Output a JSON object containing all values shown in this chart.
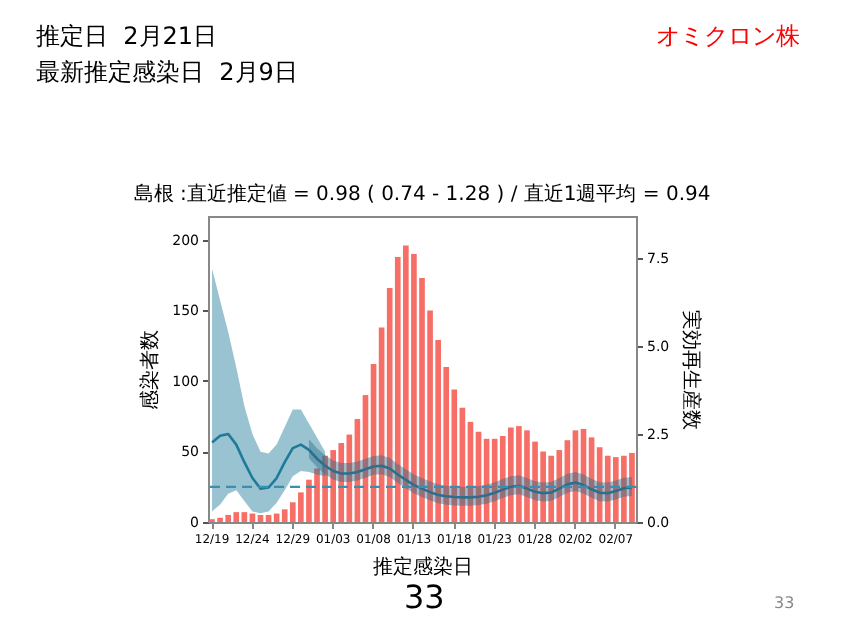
{
  "chart_data": {
    "type": "bar",
    "title": "島根 :直近推定値 = 0.98 ( 0.74 - 1.28 ) / 直近1週平均 = 0.94",
    "xlabel": "推定感染日",
    "ylabel": "感染者数",
    "y2label": "実効再生産数",
    "annotations": [
      "推定日  2月21日",
      "最新推定感染日  2月9日",
      "オミクロン株",
      "33",
      "33"
    ],
    "categories": [
      "12/19",
      null,
      null,
      null,
      null,
      "12/24",
      null,
      null,
      null,
      null,
      "12/29",
      null,
      null,
      null,
      null,
      "01/03",
      null,
      null,
      null,
      null,
      "01/08",
      null,
      null,
      null,
      null,
      "01/13",
      null,
      null,
      null,
      null,
      "01/18",
      null,
      null,
      null,
      null,
      "01/23",
      null,
      null,
      null,
      null,
      "01/28",
      null,
      null,
      null,
      null,
      "02/02",
      null,
      null,
      null,
      null,
      "02/07",
      null,
      null
    ],
    "series": [
      {
        "color": "#f66e66",
        "values": [
          2,
          3,
          5,
          7,
          7,
          6,
          5,
          5,
          6,
          9,
          14,
          21,
          30,
          38,
          47,
          51,
          56,
          62,
          73,
          90,
          112,
          138,
          166,
          188,
          196,
          190,
          173,
          150,
          129,
          110,
          94,
          81,
          71,
          64,
          59,
          59,
          61,
          67,
          68,
          65,
          57,
          50,
          47,
          51,
          58,
          65,
          66,
          60,
          53,
          47,
          46,
          47,
          49
        ]
      },
      {
        "type": "line",
        "axis": "y2",
        "color": "#1f7a99",
        "values": [
          2.26,
          2.45,
          2.5,
          2.2,
          1.7,
          1.25,
          0.95,
          0.98,
          1.25,
          1.7,
          2.1,
          2.2,
          2.05,
          null,
          null,
          null,
          null,
          null,
          null,
          null,
          null,
          null,
          null,
          null,
          null,
          null,
          null,
          null,
          null,
          null,
          null,
          null,
          null,
          null,
          null,
          null,
          null,
          null,
          null,
          null,
          null,
          null,
          null,
          null,
          null,
          null,
          null,
          null,
          null,
          null,
          null,
          null,
          null
        ],
        "lower": [
          0.3,
          0.5,
          0.8,
          0.9,
          0.6,
          0.3,
          0.25,
          0.3,
          0.55,
          0.9,
          1.3,
          1.45,
          1.42,
          1.35,
          1.3,
          null,
          null,
          null,
          null,
          null,
          null,
          null,
          null,
          null,
          null,
          null,
          null,
          null,
          null,
          null,
          null,
          null,
          null,
          null,
          null,
          null,
          null,
          null,
          null,
          null,
          null,
          null,
          null,
          null,
          null,
          null,
          null,
          null,
          null,
          null,
          null,
          null,
          null
        ],
        "upper": [
          7.2,
          6.3,
          5.4,
          4.4,
          3.3,
          2.5,
          2.0,
          1.95,
          2.2,
          2.7,
          3.2,
          3.2,
          2.8,
          2.4,
          2.0,
          null,
          null,
          null,
          null,
          null,
          null,
          null,
          null,
          null,
          null,
          null,
          null,
          null,
          null,
          null,
          null,
          null,
          null,
          null,
          null,
          null,
          null,
          null,
          null,
          null,
          null,
          null,
          null,
          null,
          null,
          null,
          null,
          null,
          null,
          null,
          null,
          null,
          null
        ]
      },
      {
        "type": "line",
        "axis": "y2",
        "color": "#2c6f8c",
        "values": [
          null,
          null,
          null,
          null,
          null,
          null,
          null,
          null,
          null,
          null,
          null,
          null,
          2.05,
          1.8,
          1.6,
          1.45,
          1.38,
          1.38,
          1.42,
          1.5,
          1.58,
          1.6,
          1.52,
          1.35,
          1.2,
          1.05,
          0.95,
          0.85,
          0.77,
          0.73,
          0.71,
          0.7,
          0.7,
          0.72,
          0.76,
          0.83,
          0.92,
          1.0,
          1.03,
          0.95,
          0.86,
          0.82,
          0.84,
          0.95,
          1.07,
          1.12,
          1.05,
          0.93,
          0.83,
          0.82,
          0.88,
          0.96,
          0.98
        ],
        "lower": [
          null,
          null,
          null,
          null,
          null,
          null,
          null,
          null,
          null,
          null,
          null,
          null,
          1.81,
          1.56,
          1.36,
          1.21,
          1.14,
          1.14,
          1.18,
          1.26,
          1.34,
          1.36,
          1.28,
          1.11,
          0.96,
          0.81,
          0.71,
          0.61,
          0.53,
          0.49,
          0.47,
          0.46,
          0.46,
          0.48,
          0.52,
          0.59,
          0.68,
          0.76,
          0.79,
          0.71,
          0.62,
          0.58,
          0.6,
          0.71,
          0.83,
          0.88,
          0.81,
          0.69,
          0.59,
          0.58,
          0.64,
          0.72,
          0.74
        ],
        "upper": [
          null,
          null,
          null,
          null,
          null,
          null,
          null,
          null,
          null,
          null,
          null,
          null,
          2.35,
          2.1,
          1.9,
          1.75,
          1.68,
          1.68,
          1.72,
          1.8,
          1.88,
          1.9,
          1.82,
          1.65,
          1.5,
          1.35,
          1.25,
          1.15,
          1.07,
          1.03,
          1.01,
          1.0,
          1.0,
          1.02,
          1.06,
          1.13,
          1.22,
          1.3,
          1.33,
          1.25,
          1.16,
          1.12,
          1.14,
          1.25,
          1.37,
          1.42,
          1.35,
          1.23,
          1.13,
          1.12,
          1.18,
          1.26,
          1.28
        ]
      }
    ],
    "ylim": [
      0,
      217
    ],
    "yticks": [
      0,
      50,
      100,
      150,
      200
    ],
    "y2lim": [
      0,
      8.7
    ],
    "y2ticks": [
      {
        "value": 0,
        "label": "0.0"
      },
      {
        "value": 2.5,
        "label": "2.5"
      },
      {
        "value": 5,
        "label": "5.0"
      },
      {
        "value": 7.5,
        "label": "7.5"
      }
    ],
    "ref_lines": [
      {
        "axis": "y2",
        "value": 1,
        "color": "#3a8fb0",
        "line_style": "dashed"
      }
    ],
    "grid": false
  }
}
